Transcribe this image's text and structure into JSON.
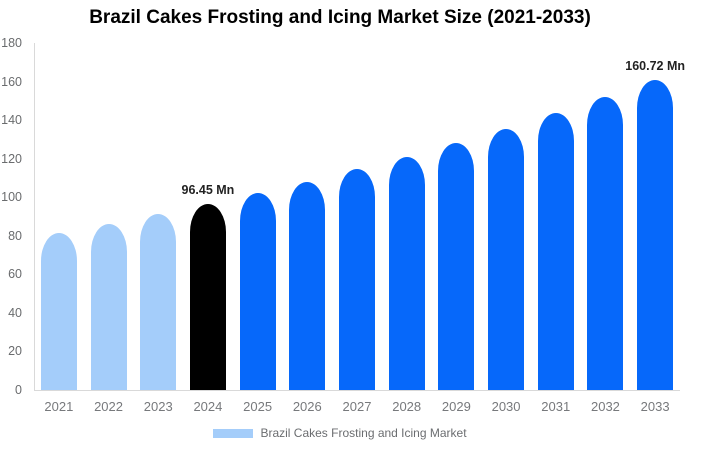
{
  "chart_data": {
    "type": "bar",
    "title": "Brazil Cakes Frosting and Icing Market Size (2021-2033)",
    "categories": [
      "2021",
      "2022",
      "2023",
      "2024",
      "2025",
      "2026",
      "2027",
      "2028",
      "2029",
      "2030",
      "2031",
      "2032",
      "2033"
    ],
    "series": [
      {
        "name": "Brazil Cakes Frosting and Icing Market",
        "values": [
          81.4,
          86.1,
          91.1,
          96.45,
          102.1,
          108.0,
          114.4,
          121.0,
          128.1,
          135.6,
          143.5,
          151.9,
          160.72
        ]
      }
    ],
    "unit": "Mn",
    "xlabel": "",
    "ylabel": "",
    "ylim": [
      0,
      180
    ],
    "y_ticks": [
      0,
      20,
      40,
      60,
      80,
      100,
      120,
      140,
      160,
      180
    ],
    "grid": false,
    "legend_position": "bottom",
    "bar_color_roles": [
      "historical",
      "historical",
      "historical",
      "base_year",
      "forecast",
      "forecast",
      "forecast",
      "forecast",
      "forecast",
      "forecast",
      "forecast",
      "forecast",
      "forecast"
    ],
    "palette": {
      "historical": "#A4CDFA",
      "base_year": "#000000",
      "forecast": "#0668FA",
      "axis_line": "#d9d9d9",
      "tick_text": "#6a6c6e",
      "value_label_text": "#222222"
    },
    "annotations": [
      {
        "category": "2024",
        "text": "96.45 Mn"
      },
      {
        "category": "2033",
        "text": "160.72 Mn"
      }
    ]
  }
}
